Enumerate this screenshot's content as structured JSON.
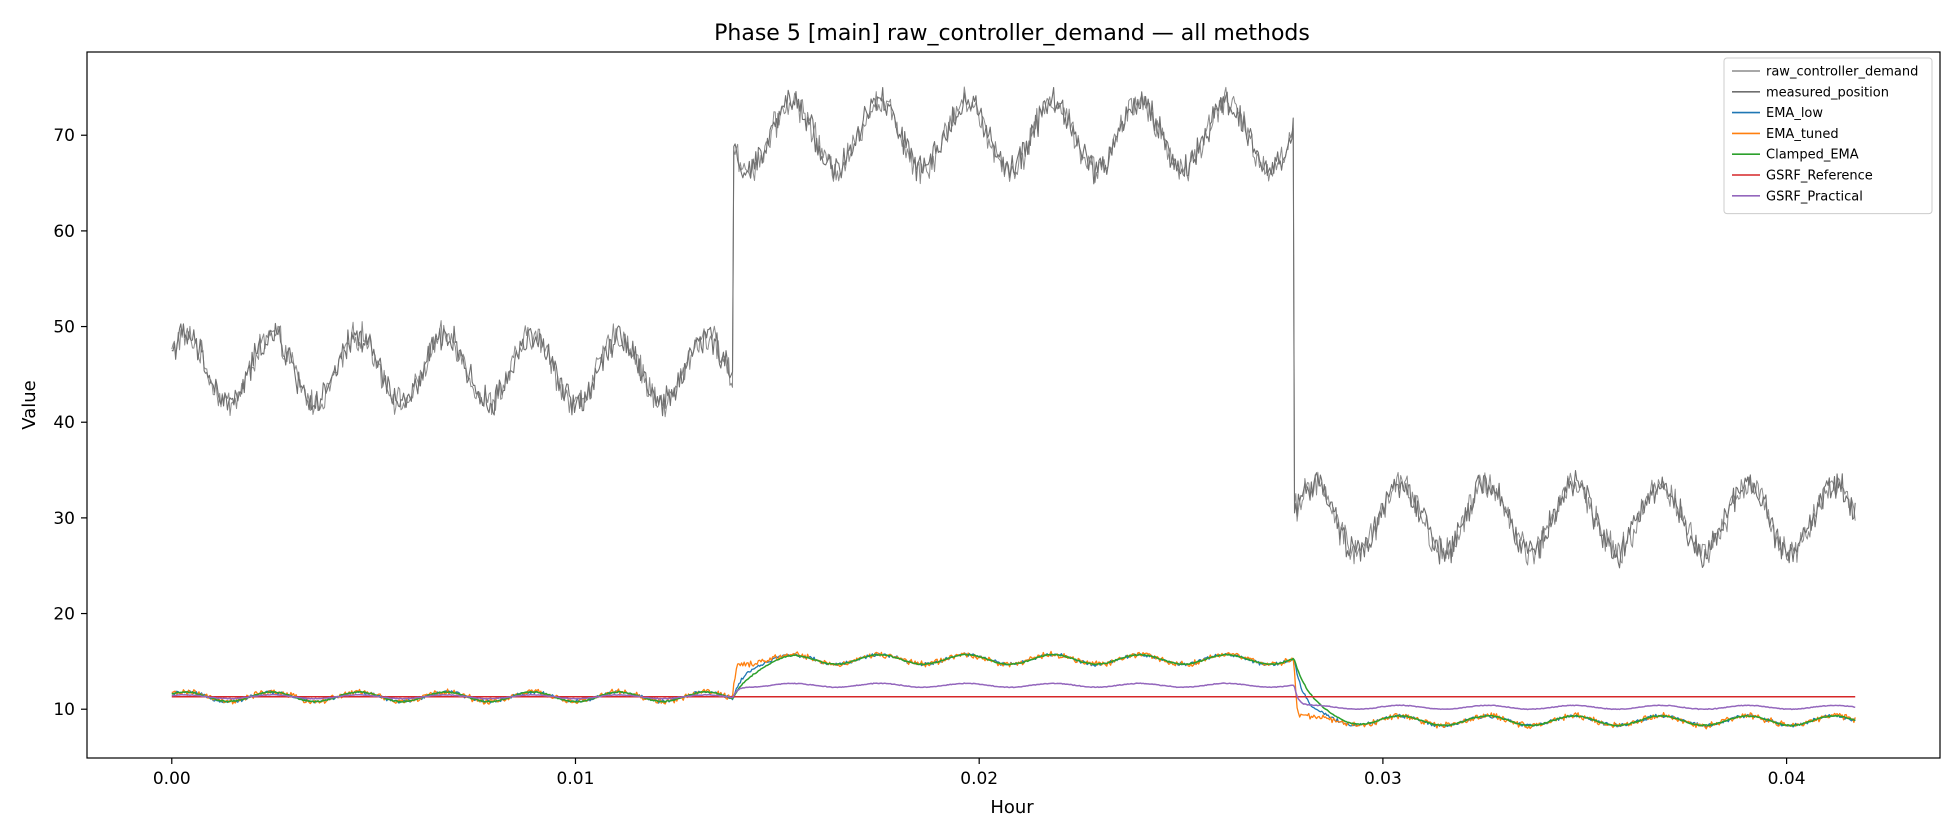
{
  "chart_data": {
    "type": "line",
    "title": "Phase 5 [main] raw_controller_demand — all methods",
    "xlabel": "Hour",
    "ylabel": "Value",
    "xlim": [
      -0.0021,
      0.0438
    ],
    "ylim": [
      4.9,
      78.7
    ],
    "xticks": [
      0.0,
      0.01,
      0.02,
      0.03,
      0.04
    ],
    "xtick_labels": [
      "0.00",
      "0.01",
      "0.02",
      "0.03",
      "0.04"
    ],
    "yticks": [
      10,
      20,
      30,
      40,
      50,
      60,
      70
    ],
    "ytick_labels": [
      "10",
      "20",
      "30",
      "40",
      "50",
      "60",
      "70"
    ],
    "grid": false,
    "legend_position": "top-right",
    "x_range": [
      0.0,
      0.0417
    ],
    "sine_period_hours": 0.00215,
    "segments": [
      {
        "start": 0.0,
        "end": 0.0139
      },
      {
        "start": 0.0139,
        "end": 0.0278
      },
      {
        "start": 0.0278,
        "end": 0.0417
      }
    ],
    "series": [
      {
        "name": "raw_controller_demand",
        "color": "#8c8c8c",
        "width": 1.0,
        "levels": [
          45.5,
          70.0,
          30.0
        ],
        "amplitude": 3.5,
        "noise": 1.2,
        "lag": 0
      },
      {
        "name": "measured_position",
        "color": "#6f6f6f",
        "width": 1.1,
        "levels": [
          45.5,
          70.0,
          30.0
        ],
        "amplitude": 3.5,
        "noise": 1.2,
        "lag": 0
      },
      {
        "name": "EMA_low",
        "color": "#1f77b4",
        "width": 1.3,
        "levels": [
          11.3,
          15.2,
          8.8
        ],
        "amplitude": 0.5,
        "noise": 0.15,
        "lag": 0.00025
      },
      {
        "name": "EMA_tuned",
        "color": "#ff7f0e",
        "width": 1.3,
        "levels": [
          11.3,
          15.2,
          8.8
        ],
        "amplitude": 0.5,
        "noise": 0.25,
        "lag": 5e-05
      },
      {
        "name": "Clamped_EMA",
        "color": "#2ca02c",
        "width": 1.5,
        "levels": [
          11.3,
          15.2,
          8.8
        ],
        "amplitude": 0.5,
        "noise": 0.05,
        "lag": 0.0004
      },
      {
        "name": "GSRF_Reference",
        "color": "#d62728",
        "width": 1.5,
        "levels": [
          11.3,
          11.3,
          11.3
        ],
        "amplitude": 0.0,
        "noise": 0.0,
        "lag": 0
      },
      {
        "name": "GSRF_Practical",
        "color": "#9467bd",
        "width": 1.5,
        "levels": [
          11.3,
          12.5,
          10.2
        ],
        "amplitude": 0.2,
        "noise": 0.03,
        "lag": 0.0001
      }
    ]
  }
}
